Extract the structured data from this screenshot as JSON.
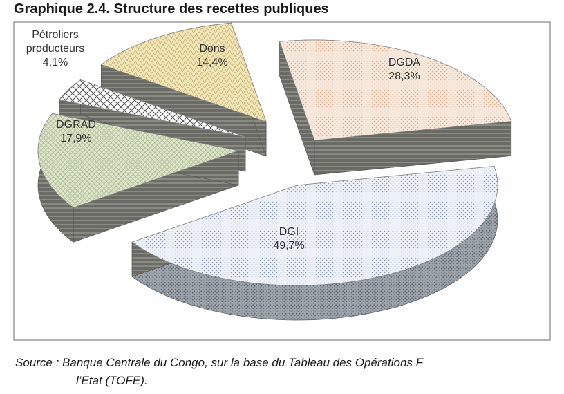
{
  "chart_title": "Graphique 2.4. Structure des recettes publiques",
  "source": {
    "line1": "Source : Banque Centrale du Congo, sur la base du Tableau des Opérations F",
    "line2": "l’Etat (TOFE)."
  },
  "chart_data": {
    "type": "pie",
    "title": "Graphique 2.4. Structure des recettes publiques",
    "slices": [
      {
        "label_lines": [
          "DGDA"
        ],
        "value": 28.3,
        "value_label": "28,3%",
        "color": "#f6e6da"
      },
      {
        "label_lines": [
          "DGI"
        ],
        "value": 49.7,
        "value_label": "49,7%",
        "color": "#e6ecf6"
      },
      {
        "label_lines": [
          "DGRAD"
        ],
        "value": 17.9,
        "value_label": "17,9%",
        "color": "#d9e2c4"
      },
      {
        "label_lines": [
          "Pétroliers",
          "producteurs"
        ],
        "value": 4.1,
        "value_label": "4,1%",
        "color": "#ffffff"
      },
      {
        "label_lines": [
          "Dons"
        ],
        "value": 14.4,
        "value_label": "14,4%",
        "color": "#f1e5b4"
      }
    ],
    "style": "3d exploded pie"
  }
}
